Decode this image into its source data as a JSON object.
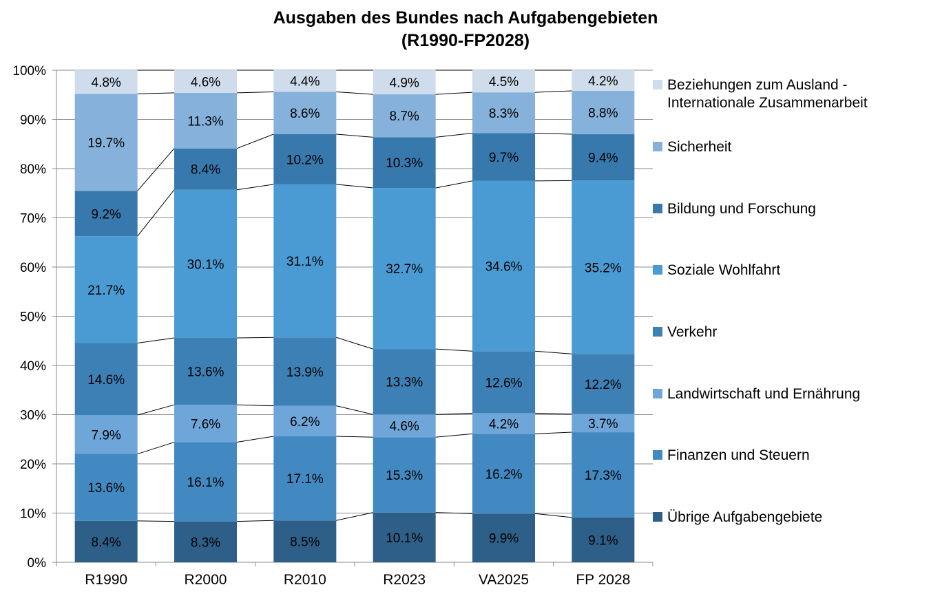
{
  "chart_data": {
    "type": "bar",
    "stacked": "percent",
    "title_lines": [
      "Ausgaben des Bundes nach Aufgabengebieten",
      "(R1990-FP2028)"
    ],
    "categories": [
      "R1990",
      "R2000",
      "R2010",
      "R2023",
      "VA2025",
      "FP 2028"
    ],
    "y_ticks": [
      "0%",
      "10%",
      "20%",
      "30%",
      "40%",
      "50%",
      "60%",
      "70%",
      "80%",
      "90%",
      "100%"
    ],
    "ylim": [
      0,
      100
    ],
    "grid": true,
    "legend_position": "right",
    "series": [
      {
        "name": "Übrige Aufgabengebiete",
        "color": "#2e5f88",
        "values": [
          8.4,
          8.3,
          8.5,
          10.1,
          9.9,
          9.1
        ],
        "labels": [
          "8.4%",
          "8.3%",
          "8.5%",
          "10.1%",
          "9.9%",
          "9.1%"
        ]
      },
      {
        "name": "Finanzen und Steuern",
        "color": "#4289c2",
        "values": [
          13.6,
          16.1,
          17.1,
          15.3,
          16.2,
          17.3
        ],
        "labels": [
          "13.6%",
          "16.1%",
          "17.1%",
          "15.3%",
          "16.2%",
          "17.3%"
        ]
      },
      {
        "name": "Landwirtschaft und Ernährung",
        "color": "#6fa6d9",
        "values": [
          7.9,
          7.6,
          6.2,
          4.6,
          4.2,
          3.7
        ],
        "labels": [
          "7.9%",
          "7.6%",
          "6.2%",
          "4.6%",
          "4.2%",
          "3.7%"
        ]
      },
      {
        "name": "Verkehr",
        "color": "#3d80b5",
        "values": [
          14.6,
          13.6,
          13.9,
          13.3,
          12.6,
          12.2
        ],
        "labels": [
          "14.6%",
          "13.6%",
          "13.9%",
          "13.3%",
          "12.6%",
          "12.2%"
        ]
      },
      {
        "name": "Soziale Wohlfahrt",
        "color": "#4a9bd4",
        "values": [
          21.7,
          30.1,
          31.1,
          32.7,
          34.6,
          35.2
        ],
        "labels": [
          "21.7%",
          "30.1%",
          "31.1%",
          "32.7%",
          "34.6%",
          "35.2%"
        ]
      },
      {
        "name": "Bildung und Forschung",
        "color": "#3879ad",
        "values": [
          9.2,
          8.4,
          10.2,
          10.3,
          9.7,
          9.4
        ],
        "labels": [
          "9.2%",
          "8.4%",
          "10.2%",
          "10.3%",
          "9.7%",
          "9.4%"
        ]
      },
      {
        "name": "Sicherheit",
        "color": "#85b1db",
        "values": [
          19.7,
          11.3,
          8.6,
          8.7,
          8.3,
          8.8
        ],
        "labels": [
          "19.7%",
          "11.3%",
          "8.6%",
          "8.7%",
          "8.3%",
          "8.8%"
        ]
      },
      {
        "name": "Beziehungen zum Ausland -\nInternationale Zusammenarbeit",
        "color": "#cfdcec",
        "values": [
          4.8,
          4.6,
          4.4,
          4.9,
          4.5,
          4.2
        ],
        "labels": [
          "4.8%",
          "4.6%",
          "4.4%",
          "4.9%",
          "4.5%",
          "4.2%"
        ]
      }
    ]
  }
}
